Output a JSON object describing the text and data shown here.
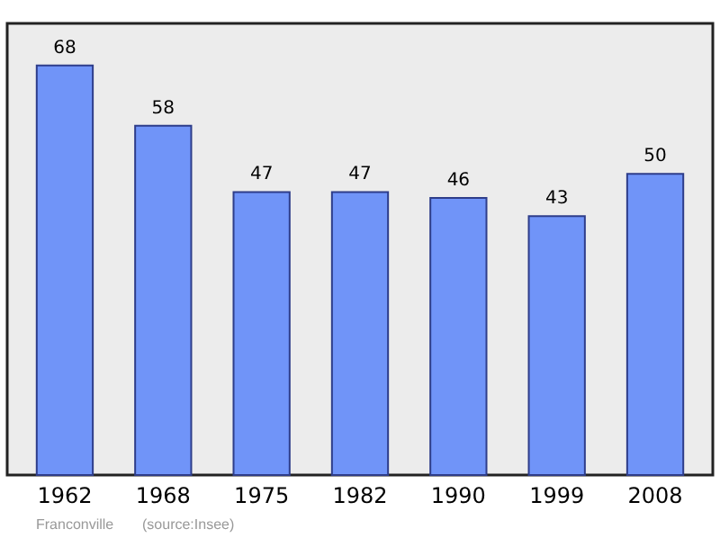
{
  "chart_data": {
    "type": "bar",
    "categories": [
      "1962",
      "1968",
      "1975",
      "1982",
      "1990",
      "1999",
      "2008"
    ],
    "values": [
      68,
      58,
      47,
      47,
      46,
      43,
      50
    ],
    "color": "#7094f8",
    "ylim": [
      0,
      75
    ],
    "data_labels": true,
    "tick_labels": "x",
    "grid": false,
    "annotations": [
      "Franconville",
      "(source:Insee)"
    ]
  }
}
